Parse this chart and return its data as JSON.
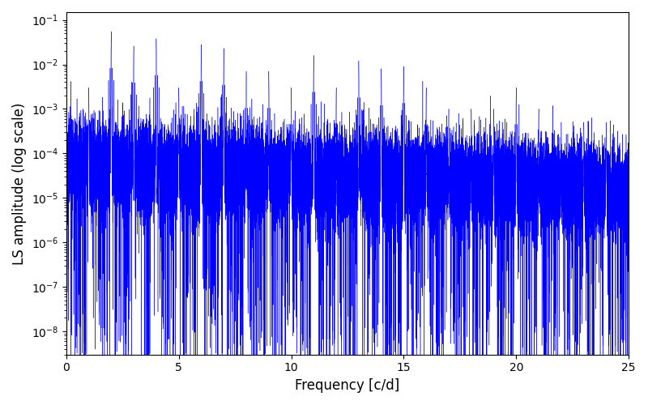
{
  "xlabel": "Frequency [c/d]",
  "ylabel": "LS amplitude (log scale)",
  "xlim": [
    0,
    25
  ],
  "ylim_log": [
    3e-09,
    0.15
  ],
  "line_color": "#0000ff",
  "line_width": 0.3,
  "background_color": "#ffffff",
  "freq_max": 25.0,
  "num_points": 25000,
  "seed": 42,
  "base_log": -4.3,
  "noise_std": 0.5
}
